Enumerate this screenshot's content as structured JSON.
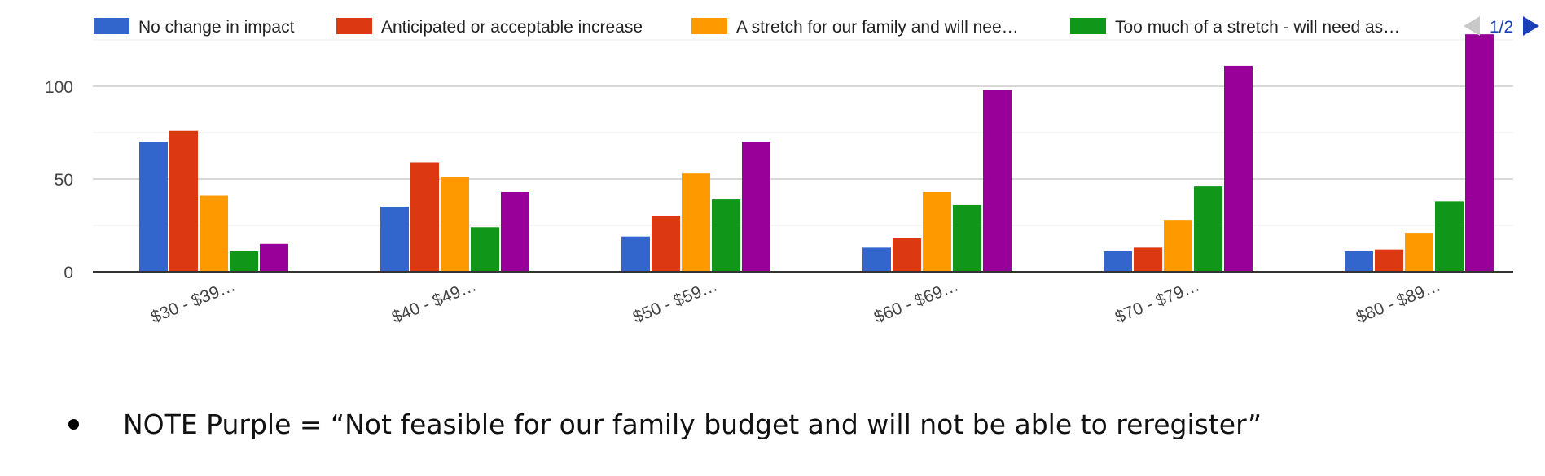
{
  "chart_data": {
    "type": "bar",
    "categories": [
      "$30 - $39…",
      "$40 - $49…",
      "$50 - $59…",
      "$60 - $69…",
      "$70 - $79…",
      "$80 - $89…"
    ],
    "series": [
      {
        "name": "No change in impact",
        "color": "#3366cc",
        "values": [
          70,
          35,
          19,
          13,
          11,
          11
        ]
      },
      {
        "name": "Anticipated or acceptable increase",
        "color": "#dc3912",
        "values": [
          76,
          59,
          30,
          18,
          13,
          12
        ]
      },
      {
        "name": "A stretch for our family and will nee…",
        "color": "#ff9900",
        "values": [
          41,
          51,
          53,
          43,
          28,
          21
        ]
      },
      {
        "name": "Too much of a stretch - will need as…",
        "color": "#109618",
        "values": [
          11,
          24,
          39,
          36,
          46,
          38
        ]
      },
      {
        "color": "#990099",
        "values": [
          15,
          43,
          70,
          98,
          111,
          128
        ]
      }
    ],
    "y_ticks": [
      "0",
      "50",
      "100"
    ],
    "ylim": [
      0,
      128
    ],
    "grid": true,
    "legend_position": "top",
    "legend_page": "1/2"
  },
  "note": {
    "text": "NOTE Purple = “Not feasible for our family budget and will not be able to reregister”"
  }
}
